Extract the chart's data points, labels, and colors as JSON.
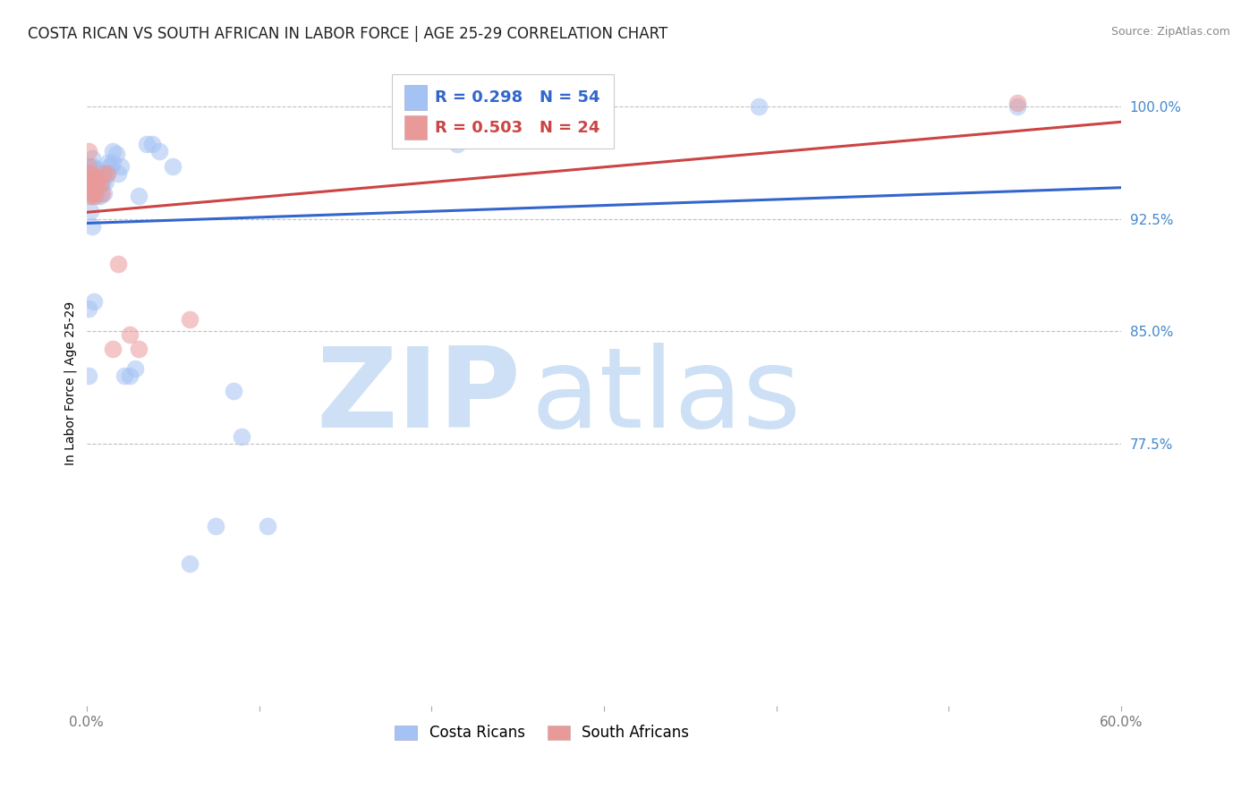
{
  "title": "COSTA RICAN VS SOUTH AFRICAN IN LABOR FORCE | AGE 25-29 CORRELATION CHART",
  "source": "Source: ZipAtlas.com",
  "ylabel": "In Labor Force | Age 25-29",
  "xlim": [
    0.0,
    0.6
  ],
  "ylim": [
    0.6,
    1.03
  ],
  "xticks": [
    0.0,
    0.1,
    0.2,
    0.3,
    0.4,
    0.5,
    0.6
  ],
  "xticklabels": [
    "0.0%",
    "",
    "",
    "",
    "",
    "",
    "60.0%"
  ],
  "yticks": [
    0.775,
    0.85,
    0.925,
    1.0
  ],
  "yticklabels": [
    "77.5%",
    "85.0%",
    "92.5%",
    "100.0%"
  ],
  "legend_r_blue": "R = 0.298",
  "legend_n_blue": "N = 54",
  "legend_r_pink": "R = 0.503",
  "legend_n_pink": "N = 24",
  "blue_color": "#a4c2f4",
  "pink_color": "#ea9999",
  "blue_line_color": "#3366cc",
  "pink_line_color": "#cc4444",
  "watermark_zip": "ZIP",
  "watermark_atlas": "atlas",
  "watermark_color": "#cde0f5",
  "title_fontsize": 12,
  "axis_label_fontsize": 10,
  "tick_fontsize": 11,
  "background_color": "#ffffff",
  "grid_color": "#bbbbbb",
  "costa_rican_x": [
    0.001,
    0.002,
    0.002,
    0.003,
    0.003,
    0.003,
    0.003,
    0.004,
    0.004,
    0.005,
    0.005,
    0.005,
    0.006,
    0.006,
    0.006,
    0.007,
    0.007,
    0.008,
    0.008,
    0.009,
    0.009,
    0.01,
    0.01,
    0.011,
    0.012,
    0.012,
    0.013,
    0.014,
    0.015,
    0.015,
    0.017,
    0.018,
    0.02,
    0.022,
    0.025,
    0.028,
    0.03,
    0.035,
    0.038,
    0.042,
    0.05,
    0.06,
    0.075,
    0.085,
    0.09,
    0.105,
    0.215,
    0.39,
    0.54,
    0.001,
    0.001,
    0.002,
    0.003,
    0.004
  ],
  "costa_rican_y": [
    0.955,
    0.94,
    0.955,
    0.95,
    0.96,
    0.965,
    0.96,
    0.958,
    0.95,
    0.942,
    0.948,
    0.955,
    0.94,
    0.95,
    0.958,
    0.948,
    0.956,
    0.94,
    0.952,
    0.948,
    0.956,
    0.942,
    0.952,
    0.95,
    0.956,
    0.962,
    0.96,
    0.96,
    0.962,
    0.97,
    0.968,
    0.955,
    0.96,
    0.82,
    0.82,
    0.825,
    0.94,
    0.975,
    0.975,
    0.97,
    0.96,
    0.695,
    0.72,
    0.81,
    0.78,
    0.72,
    0.975,
    1.0,
    1.0,
    0.865,
    0.82,
    0.93,
    0.92,
    0.87
  ],
  "south_african_x": [
    0.001,
    0.001,
    0.001,
    0.002,
    0.002,
    0.002,
    0.003,
    0.003,
    0.004,
    0.004,
    0.005,
    0.005,
    0.006,
    0.007,
    0.008,
    0.009,
    0.01,
    0.012,
    0.015,
    0.018,
    0.025,
    0.03,
    0.06,
    0.54
  ],
  "south_african_y": [
    0.955,
    0.96,
    0.97,
    0.94,
    0.948,
    0.955,
    0.942,
    0.95,
    0.94,
    0.948,
    0.942,
    0.95,
    0.95,
    0.952,
    0.948,
    0.942,
    0.955,
    0.955,
    0.838,
    0.895,
    0.848,
    0.838,
    0.858,
    1.002
  ]
}
